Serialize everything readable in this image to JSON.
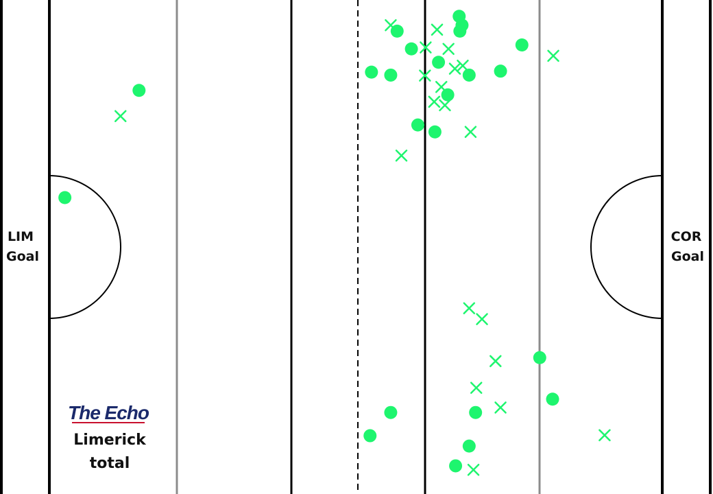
{
  "chart_data": {
    "type": "scatter",
    "title": "",
    "subtitle": "",
    "xlabel": "",
    "ylabel": "",
    "grid": false,
    "colors": {
      "marker": "#1ef56e",
      "lines": "#000000",
      "secondary_lines": "#8c8c8c",
      "brand": "#1b2a6b",
      "brand_underline": "#c8102e"
    },
    "left_goal_label": [
      "LIM",
      "Goal"
    ],
    "right_goal_label": [
      "COR",
      "Goal"
    ],
    "brand": "The Echo",
    "caption": [
      "Limerick",
      "total"
    ],
    "series": [
      {
        "marker": "circle",
        "points": [
          {
            "x": 0.195,
            "y": 0.183
          },
          {
            "x": 0.091,
            "y": 0.4
          },
          {
            "x": 0.644,
            "y": 0.033
          },
          {
            "x": 0.648,
            "y": 0.051
          },
          {
            "x": 0.645,
            "y": 0.063
          },
          {
            "x": 0.557,
            "y": 0.063
          },
          {
            "x": 0.577,
            "y": 0.099
          },
          {
            "x": 0.732,
            "y": 0.091
          },
          {
            "x": 0.615,
            "y": 0.126
          },
          {
            "x": 0.521,
            "y": 0.146
          },
          {
            "x": 0.548,
            "y": 0.152
          },
          {
            "x": 0.658,
            "y": 0.152
          },
          {
            "x": 0.702,
            "y": 0.144
          },
          {
            "x": 0.628,
            "y": 0.192
          },
          {
            "x": 0.586,
            "y": 0.253
          },
          {
            "x": 0.61,
            "y": 0.267
          },
          {
            "x": 0.757,
            "y": 0.724
          },
          {
            "x": 0.775,
            "y": 0.808
          },
          {
            "x": 0.548,
            "y": 0.835
          },
          {
            "x": 0.667,
            "y": 0.835
          },
          {
            "x": 0.519,
            "y": 0.882
          },
          {
            "x": 0.658,
            "y": 0.903
          },
          {
            "x": 0.639,
            "y": 0.943
          }
        ]
      },
      {
        "marker": "cross",
        "points": [
          {
            "x": 0.169,
            "y": 0.235
          },
          {
            "x": 0.548,
            "y": 0.051
          },
          {
            "x": 0.613,
            "y": 0.06
          },
          {
            "x": 0.597,
            "y": 0.096
          },
          {
            "x": 0.629,
            "y": 0.099
          },
          {
            "x": 0.776,
            "y": 0.113
          },
          {
            "x": 0.638,
            "y": 0.139
          },
          {
            "x": 0.649,
            "y": 0.133
          },
          {
            "x": 0.596,
            "y": 0.153
          },
          {
            "x": 0.619,
            "y": 0.176
          },
          {
            "x": 0.609,
            "y": 0.206
          },
          {
            "x": 0.624,
            "y": 0.213
          },
          {
            "x": 0.66,
            "y": 0.267
          },
          {
            "x": 0.563,
            "y": 0.315
          },
          {
            "x": 0.658,
            "y": 0.624
          },
          {
            "x": 0.676,
            "y": 0.646
          },
          {
            "x": 0.695,
            "y": 0.731
          },
          {
            "x": 0.668,
            "y": 0.785
          },
          {
            "x": 0.702,
            "y": 0.825
          },
          {
            "x": 0.848,
            "y": 0.881
          },
          {
            "x": 0.664,
            "y": 0.951
          }
        ]
      }
    ]
  }
}
